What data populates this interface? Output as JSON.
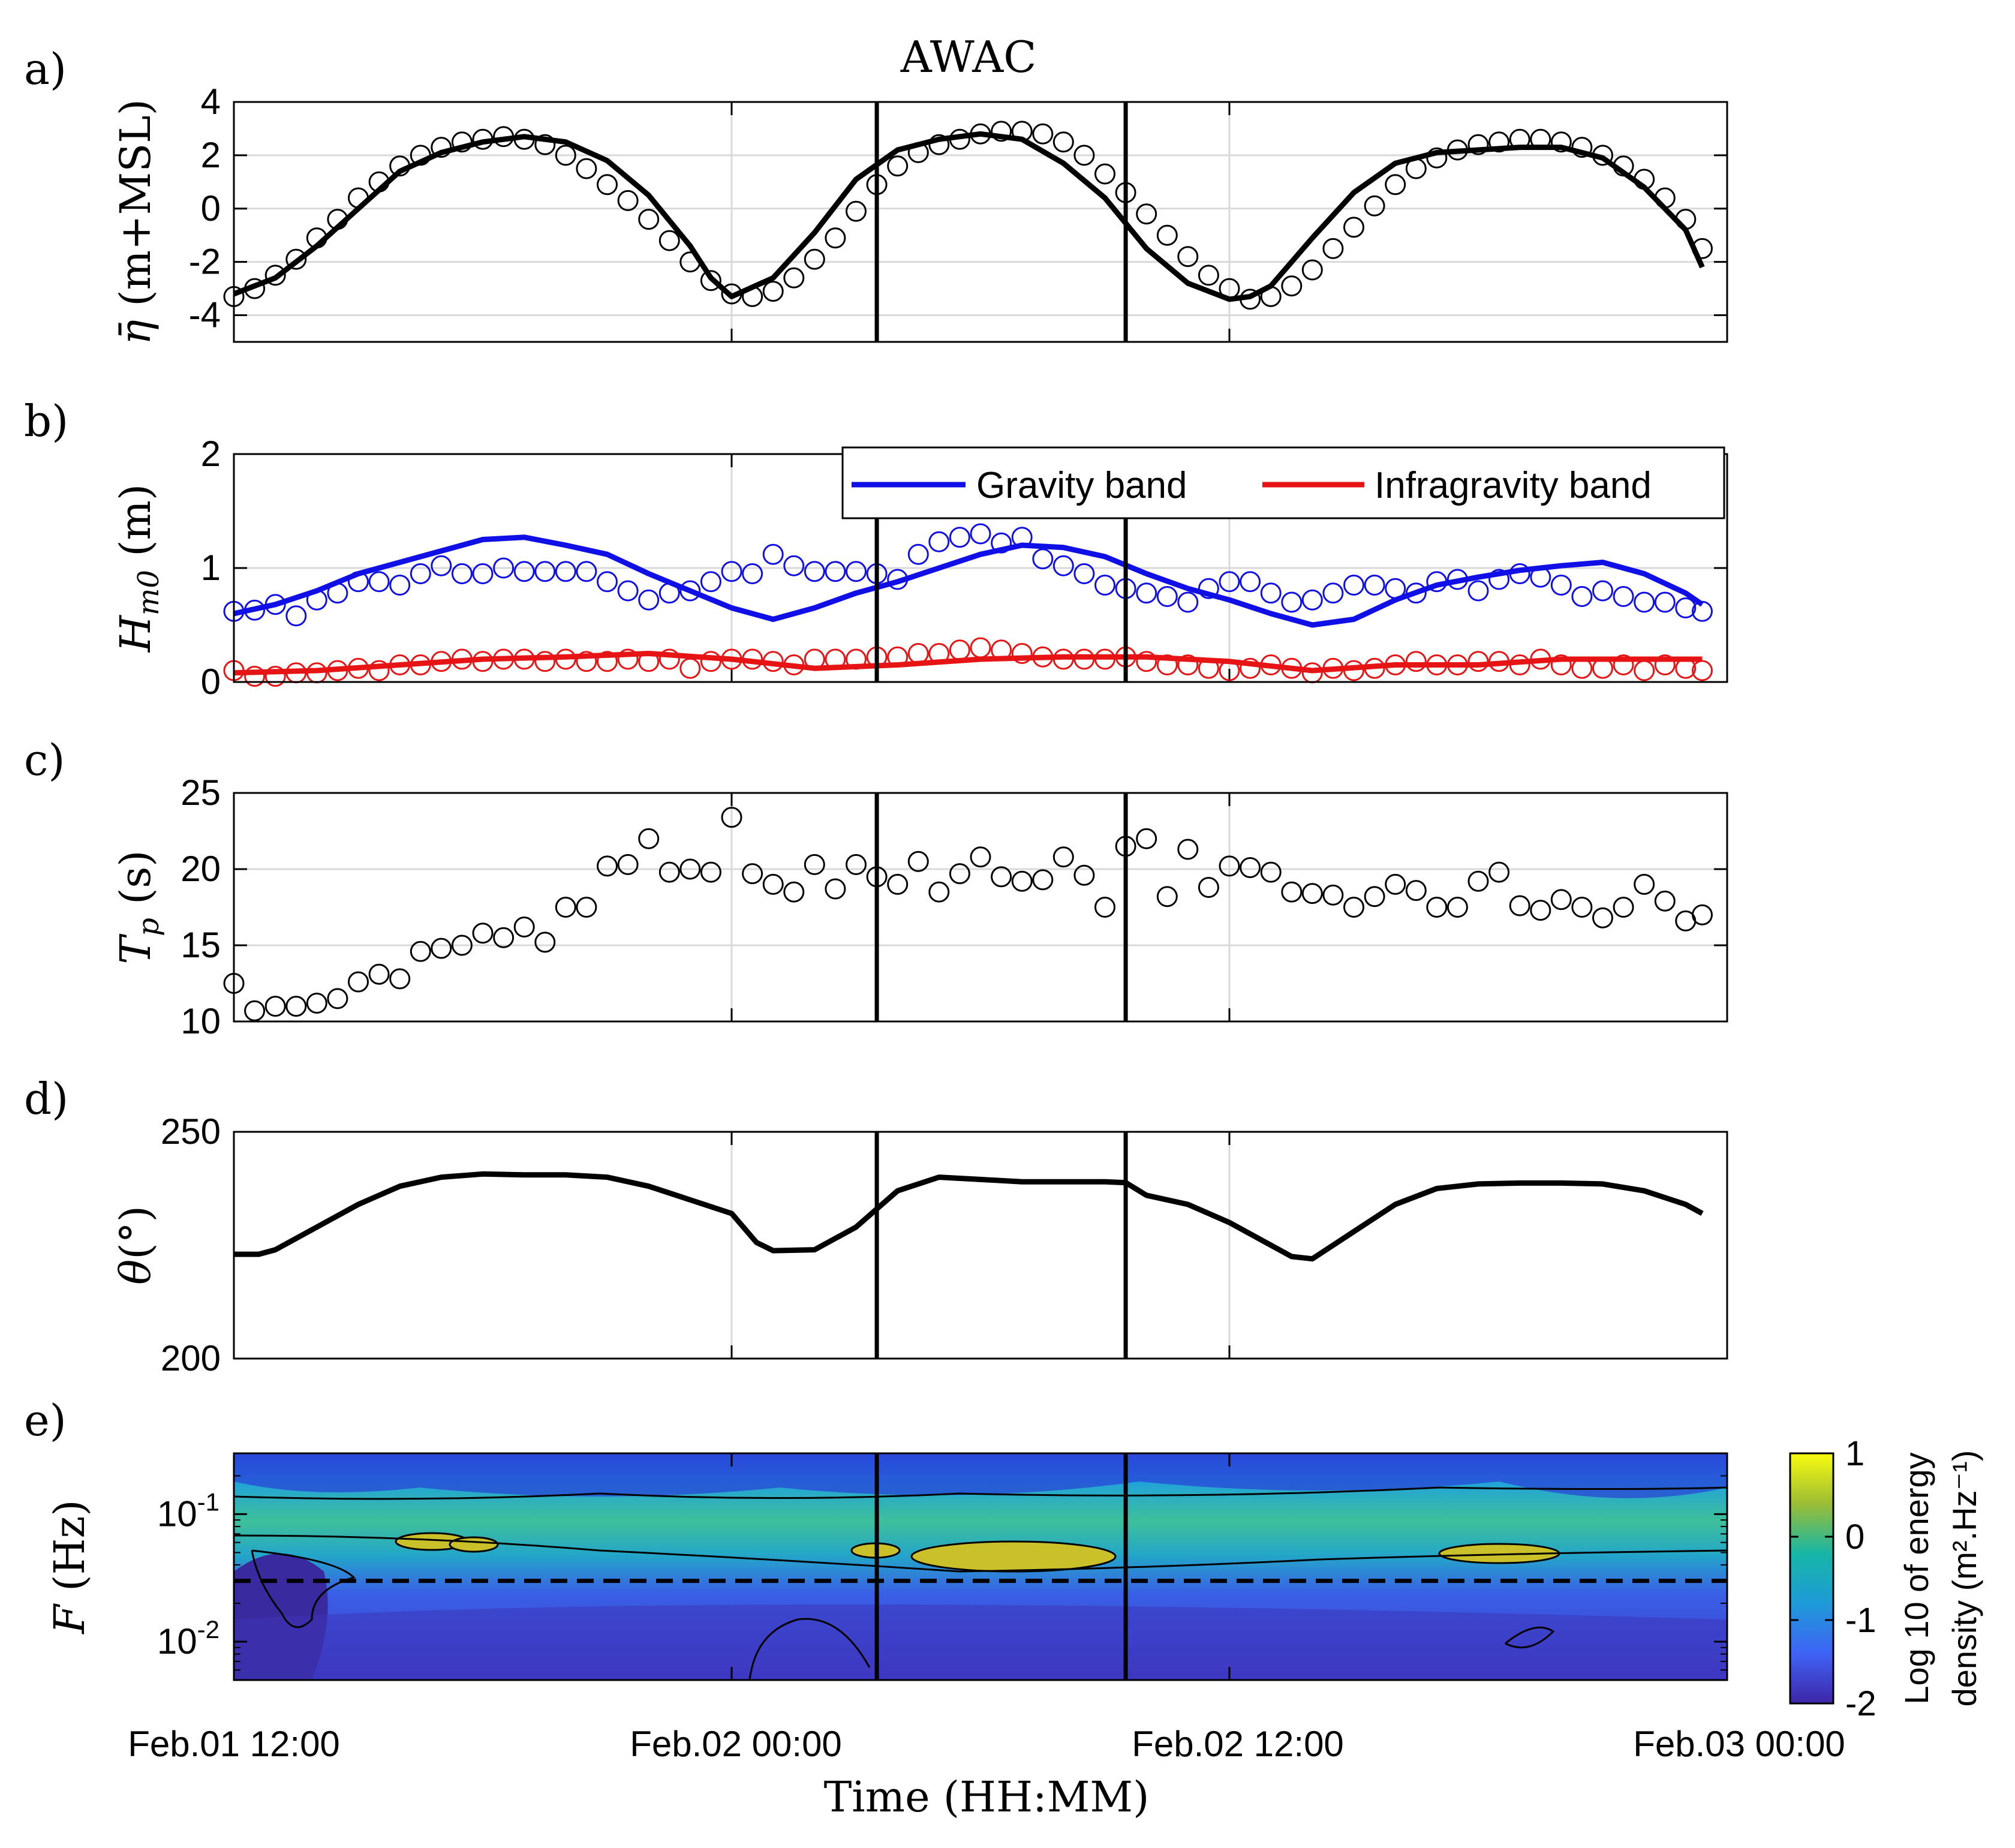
{
  "title": "AWAC",
  "x_axis": {
    "label": "Time (HH:MM)",
    "range_hours": [
      0,
      36
    ],
    "ticks": [
      {
        "hours": 0,
        "label": "Feb.01 12:00"
      },
      {
        "hours": 12,
        "label": "Feb.02 00:00"
      },
      {
        "hours": 24,
        "label": "Feb.02 12:00"
      },
      {
        "hours": 36,
        "label": "Feb.03 00:00"
      }
    ]
  },
  "event_lines_hours": [
    15.5,
    21.5
  ],
  "colors": {
    "black": "#000000",
    "gravity": "#1010e6",
    "infragravity": "#e61414",
    "grid": "#d9d9d9"
  },
  "chart_data": [
    {
      "panel": "a)",
      "type": "line",
      "ylabel": "η̄ (m+MSL)",
      "ylim": [
        -5,
        4
      ],
      "yticks": [
        4,
        2,
        0,
        -2,
        -4
      ],
      "series": [
        {
          "style": "line",
          "x": [
            0,
            1,
            2,
            3,
            4,
            5,
            6,
            7,
            8,
            9,
            10,
            11,
            11.5,
            12,
            13,
            14,
            15,
            16,
            17,
            18,
            19,
            20,
            21,
            22,
            23,
            24,
            24.5,
            25,
            26,
            27,
            28,
            29,
            30,
            31,
            32,
            33,
            34,
            35,
            35.4
          ],
          "y": [
            -3.2,
            -2.6,
            -1.4,
            0,
            1.4,
            2.1,
            2.5,
            2.7,
            2.5,
            1.8,
            0.5,
            -1.4,
            -2.6,
            -3.3,
            -2.6,
            -0.9,
            1.1,
            2.2,
            2.6,
            2.8,
            2.6,
            1.7,
            0.4,
            -1.5,
            -2.8,
            -3.4,
            -3.3,
            -2.9,
            -1.1,
            0.6,
            1.7,
            2.1,
            2.2,
            2.3,
            2.3,
            1.9,
            0.8,
            -0.8,
            -2.2
          ]
        },
        {
          "style": "markers",
          "x": [
            0,
            0.5,
            1,
            1.5,
            2,
            2.5,
            3,
            3.5,
            4,
            4.5,
            5,
            5.5,
            6,
            6.5,
            7,
            7.5,
            8,
            8.5,
            9,
            9.5,
            10,
            10.5,
            11,
            11.5,
            12,
            12.5,
            13,
            13.5,
            14,
            14.5,
            15,
            15.5,
            16,
            16.5,
            17,
            17.5,
            18,
            18.5,
            19,
            19.5,
            20,
            20.5,
            21,
            21.5,
            22,
            22.5,
            23,
            23.5,
            24,
            24.5,
            25,
            25.5,
            26,
            26.5,
            27,
            27.5,
            28,
            28.5,
            29,
            29.5,
            30,
            30.5,
            31,
            31.5,
            32,
            32.5,
            33,
            33.5,
            34,
            34.5,
            35,
            35.4
          ],
          "y": [
            -3.3,
            -3.0,
            -2.5,
            -1.9,
            -1.1,
            -0.4,
            0.4,
            1.0,
            1.6,
            2.0,
            2.3,
            2.5,
            2.6,
            2.7,
            2.6,
            2.4,
            2.0,
            1.5,
            0.9,
            0.3,
            -0.4,
            -1.2,
            -2.0,
            -2.7,
            -3.2,
            -3.3,
            -3.1,
            -2.6,
            -1.9,
            -1.1,
            -0.1,
            0.9,
            1.6,
            2.1,
            2.4,
            2.6,
            2.8,
            2.9,
            2.9,
            2.8,
            2.5,
            2.0,
            1.3,
            0.6,
            -0.2,
            -1.0,
            -1.8,
            -2.5,
            -3.0,
            -3.4,
            -3.3,
            -2.9,
            -2.3,
            -1.5,
            -0.7,
            0.1,
            0.9,
            1.5,
            1.9,
            2.2,
            2.4,
            2.5,
            2.6,
            2.6,
            2.5,
            2.3,
            2.0,
            1.6,
            1.1,
            0.4,
            -0.4,
            -1.5
          ]
        }
      ]
    },
    {
      "panel": "b)",
      "type": "line",
      "ylabel": "H_m0 (m)",
      "ylim": [
        0,
        2
      ],
      "yticks": [
        2,
        1,
        0
      ],
      "legend": {
        "placement": "top-right",
        "entries": [
          "Gravity band",
          "Infragravity band"
        ]
      },
      "series": [
        {
          "name": "Gravity band",
          "style": "line",
          "x": [
            0,
            1,
            2,
            3,
            4,
            5,
            6,
            7,
            8,
            9,
            10,
            11,
            12,
            13,
            14,
            15,
            16,
            17,
            18,
            19,
            20,
            21,
            22,
            23,
            24,
            25,
            26,
            27,
            28,
            29,
            30,
            31,
            32,
            33,
            34,
            35,
            35.4
          ],
          "y": [
            0.6,
            0.68,
            0.8,
            0.95,
            1.05,
            1.15,
            1.25,
            1.27,
            1.2,
            1.12,
            0.95,
            0.8,
            0.65,
            0.55,
            0.65,
            0.78,
            0.88,
            1.0,
            1.12,
            1.2,
            1.18,
            1.1,
            0.95,
            0.82,
            0.72,
            0.6,
            0.5,
            0.55,
            0.72,
            0.85,
            0.92,
            0.98,
            1.02,
            1.05,
            0.95,
            0.78,
            0.68
          ]
        },
        {
          "name": "Gravity band",
          "style": "markers",
          "x": [
            0,
            0.5,
            1,
            1.5,
            2,
            2.5,
            3,
            3.5,
            4,
            4.5,
            5,
            5.5,
            6,
            6.5,
            7,
            7.5,
            8,
            8.5,
            9,
            9.5,
            10,
            10.5,
            11,
            11.5,
            12,
            12.5,
            13,
            13.5,
            14,
            14.5,
            15,
            15.5,
            16,
            16.5,
            17,
            17.5,
            18,
            18.5,
            19,
            19.5,
            20,
            20.5,
            21,
            21.5,
            22,
            22.5,
            23,
            23.5,
            24,
            24.5,
            25,
            25.5,
            26,
            26.5,
            27,
            27.5,
            28,
            28.5,
            29,
            29.5,
            30,
            30.5,
            31,
            31.5,
            32,
            32.5,
            33,
            33.5,
            34,
            34.5,
            35,
            35.4
          ],
          "y": [
            0.62,
            0.63,
            0.68,
            0.58,
            0.72,
            0.78,
            0.88,
            0.88,
            0.85,
            0.95,
            1.02,
            0.95,
            0.95,
            1.0,
            0.97,
            0.97,
            0.97,
            0.97,
            0.88,
            0.8,
            0.72,
            0.78,
            0.8,
            0.88,
            0.97,
            0.95,
            1.12,
            1.02,
            0.97,
            0.97,
            0.97,
            0.95,
            0.9,
            1.12,
            1.23,
            1.27,
            1.3,
            1.22,
            1.27,
            1.08,
            1.02,
            0.95,
            0.85,
            0.82,
            0.78,
            0.75,
            0.7,
            0.82,
            0.88,
            0.88,
            0.78,
            0.7,
            0.72,
            0.78,
            0.85,
            0.85,
            0.82,
            0.78,
            0.88,
            0.9,
            0.8,
            0.9,
            0.95,
            0.92,
            0.85,
            0.75,
            0.8,
            0.75,
            0.7,
            0.7,
            0.65,
            0.62
          ]
        },
        {
          "name": "Infragravity band",
          "style": "line",
          "x": [
            0,
            2,
            4,
            6,
            8,
            10,
            12,
            14,
            16,
            18,
            20,
            22,
            24,
            26,
            28,
            30,
            32,
            34,
            35.4
          ],
          "y": [
            0.08,
            0.1,
            0.15,
            0.2,
            0.22,
            0.25,
            0.2,
            0.12,
            0.15,
            0.2,
            0.22,
            0.22,
            0.18,
            0.1,
            0.15,
            0.15,
            0.2,
            0.2,
            0.2
          ]
        },
        {
          "name": "Infragravity band",
          "style": "markers",
          "x": [
            0,
            0.5,
            1,
            1.5,
            2,
            2.5,
            3,
            3.5,
            4,
            4.5,
            5,
            5.5,
            6,
            6.5,
            7,
            7.5,
            8,
            8.5,
            9,
            9.5,
            10,
            10.5,
            11,
            11.5,
            12,
            12.5,
            13,
            13.5,
            14,
            14.5,
            15,
            15.5,
            16,
            16.5,
            17,
            17.5,
            18,
            18.5,
            19,
            19.5,
            20,
            20.5,
            21,
            21.5,
            22,
            22.5,
            23,
            23.5,
            24,
            24.5,
            25,
            25.5,
            26,
            26.5,
            27,
            27.5,
            28,
            28.5,
            29,
            29.5,
            30,
            30.5,
            31,
            31.5,
            32,
            32.5,
            33,
            33.5,
            34,
            34.5,
            35,
            35.4
          ],
          "y": [
            0.1,
            0.05,
            0.05,
            0.08,
            0.08,
            0.1,
            0.12,
            0.1,
            0.15,
            0.15,
            0.18,
            0.2,
            0.18,
            0.2,
            0.2,
            0.18,
            0.2,
            0.18,
            0.18,
            0.2,
            0.18,
            0.2,
            0.12,
            0.18,
            0.2,
            0.2,
            0.18,
            0.15,
            0.2,
            0.2,
            0.2,
            0.22,
            0.22,
            0.25,
            0.25,
            0.28,
            0.3,
            0.28,
            0.25,
            0.22,
            0.2,
            0.2,
            0.2,
            0.22,
            0.18,
            0.15,
            0.15,
            0.12,
            0.1,
            0.12,
            0.15,
            0.12,
            0.08,
            0.12,
            0.1,
            0.12,
            0.15,
            0.18,
            0.15,
            0.15,
            0.18,
            0.18,
            0.15,
            0.2,
            0.15,
            0.12,
            0.12,
            0.15,
            0.1,
            0.15,
            0.12,
            0.1
          ]
        }
      ]
    },
    {
      "panel": "c)",
      "type": "scatter",
      "ylabel": "T_p (s)",
      "ylim": [
        10,
        25
      ],
      "yticks": [
        25,
        20,
        15,
        10
      ],
      "series": [
        {
          "style": "markers",
          "x": [
            0,
            0.5,
            1,
            1.5,
            2,
            2.5,
            3,
            3.5,
            4,
            4.5,
            5,
            5.5,
            6,
            6.5,
            7,
            7.5,
            8,
            8.5,
            9,
            9.5,
            10,
            10.5,
            11,
            11.5,
            12,
            12.5,
            13,
            13.5,
            14,
            14.5,
            15,
            15.5,
            16,
            16.5,
            17,
            17.5,
            18,
            18.5,
            19,
            19.5,
            20,
            20.5,
            21,
            21.5,
            22,
            22.5,
            23,
            23.5,
            24,
            24.5,
            25,
            25.5,
            26,
            26.5,
            27,
            27.5,
            28,
            28.5,
            29,
            29.5,
            30,
            30.5,
            31,
            31.5,
            32,
            32.5,
            33,
            33.5,
            34,
            34.5,
            35,
            35.4
          ],
          "y": [
            12.5,
            10.7,
            11,
            11,
            11.2,
            11.5,
            12.6,
            13.1,
            12.8,
            14.6,
            14.8,
            15,
            15.8,
            15.5,
            16.2,
            15.2,
            17.5,
            17.5,
            20.2,
            20.3,
            22,
            19.8,
            20,
            19.8,
            23.4,
            19.7,
            19,
            18.5,
            20.3,
            18.7,
            20.3,
            19.5,
            19,
            20.5,
            18.5,
            19.7,
            20.8,
            19.5,
            19.2,
            19.3,
            20.8,
            19.6,
            17.5,
            21.5,
            22,
            18.2,
            21.3,
            18.8,
            20.2,
            20.1,
            19.8,
            18.5,
            18.4,
            18.3,
            17.5,
            18.2,
            19,
            18.6,
            17.5,
            17.5,
            19.2,
            19.8,
            17.6,
            17.3,
            18,
            17.5,
            16.8,
            17.5,
            19,
            17.9,
            16.6,
            17
          ]
        }
      ]
    },
    {
      "panel": "d)",
      "type": "line",
      "ylabel": "θ(°)",
      "ylim": [
        200,
        250
      ],
      "yticks": [
        250,
        200
      ],
      "series": [
        {
          "style": "line",
          "x": [
            0,
            0.6,
            1,
            2,
            3,
            4,
            5,
            6,
            7,
            8,
            9,
            10,
            11,
            12,
            12.6,
            13,
            14,
            15,
            15.5,
            16,
            17,
            18,
            19,
            20,
            21,
            21.5,
            22,
            23,
            24,
            25,
            25.5,
            26,
            27,
            28,
            29,
            30,
            31,
            32,
            33,
            34,
            35,
            35.4
          ],
          "y": [
            223,
            223,
            224,
            229,
            234,
            238,
            240,
            240.7,
            240.5,
            240.5,
            240,
            238,
            235,
            232,
            225.6,
            223.8,
            224,
            229,
            233,
            237,
            240,
            239.5,
            239,
            239,
            239,
            238.8,
            236,
            234,
            230,
            225,
            222.5,
            222,
            228,
            234,
            237.5,
            238.5,
            238.7,
            238.7,
            238.5,
            237,
            234,
            232
          ]
        }
      ]
    },
    {
      "panel": "e)",
      "type": "heatmap",
      "ylabel": "F (Hz)",
      "y_scale": "log",
      "ylim": [
        0.005,
        0.3
      ],
      "yticks": [
        {
          "value": 0.1,
          "label": "10-1"
        },
        {
          "value": 0.01,
          "label": "10-2"
        }
      ],
      "dashed_line_hz": 0.03,
      "colorbar": {
        "label": "Log 10 of energy density (m².Hz⁻¹)",
        "range": [
          -2,
          1
        ],
        "ticks": [
          1,
          0,
          -1,
          -2
        ]
      }
    }
  ]
}
